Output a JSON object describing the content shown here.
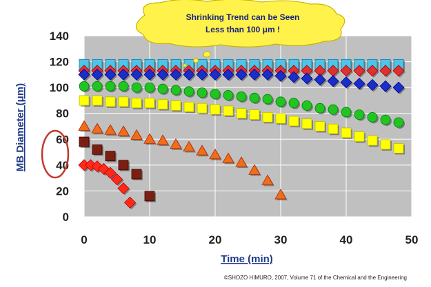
{
  "chart_data": {
    "type": "scatter",
    "title": "",
    "xlabel": "Time (min)",
    "ylabel": "MB Diameter (μm)",
    "xlim": [
      0,
      50
    ],
    "ylim": [
      0,
      140
    ],
    "x_ticks": [
      "0",
      "10",
      "20",
      "30",
      "40",
      "50"
    ],
    "y_ticks": [
      "0",
      "20",
      "40",
      "60",
      "80",
      "100",
      "120",
      "140"
    ],
    "grid": true,
    "plot_background": "#c0c0c0",
    "series": [
      {
        "marker": "square",
        "color": "#4fc3e8",
        "x": [
          0,
          2,
          4,
          6,
          8,
          10,
          12,
          14,
          16,
          18,
          20,
          22,
          24,
          26,
          28,
          30,
          32,
          34,
          36,
          38,
          40,
          42,
          44,
          46,
          48
        ],
        "y": [
          118,
          118,
          118,
          118,
          118,
          118,
          118,
          118,
          118,
          118,
          118,
          118,
          118,
          118,
          118,
          118,
          118,
          118,
          118,
          118,
          118,
          118,
          118,
          118,
          118
        ]
      },
      {
        "marker": "diamond",
        "color": "#e03030",
        "x": [
          0,
          2,
          4,
          6,
          8,
          10,
          12,
          14,
          16,
          18,
          20,
          22,
          24,
          26,
          28,
          30,
          32,
          34,
          36,
          38,
          40,
          42,
          44,
          46,
          48
        ],
        "y": [
          113,
          113,
          113,
          113,
          113,
          113,
          113,
          113,
          113,
          113,
          113,
          113,
          113,
          113,
          113,
          113,
          113,
          113,
          113,
          113,
          113,
          113,
          113,
          113,
          113
        ]
      },
      {
        "marker": "diamond",
        "color": "#1a2fc8",
        "x": [
          0,
          2,
          4,
          6,
          8,
          10,
          12,
          14,
          16,
          18,
          20,
          22,
          24,
          26,
          28,
          30,
          32,
          34,
          36,
          38,
          40,
          42,
          44,
          46,
          48
        ],
        "y": [
          110,
          110,
          110,
          110,
          110,
          110,
          110,
          110,
          110,
          110,
          110,
          110,
          110,
          110,
          110,
          109,
          108,
          107,
          106,
          105,
          104,
          103,
          102,
          101,
          100
        ]
      },
      {
        "marker": "circle",
        "color": "#22c422",
        "x": [
          0,
          2,
          4,
          6,
          8,
          10,
          12,
          14,
          16,
          18,
          20,
          22,
          24,
          26,
          28,
          30,
          32,
          34,
          36,
          38,
          40,
          42,
          44,
          46,
          48
        ],
        "y": [
          101,
          101,
          101,
          101,
          100,
          100,
          99,
          98,
          97,
          96,
          95,
          94,
          93,
          92,
          91,
          89,
          88,
          86,
          84,
          83,
          81,
          79,
          77,
          75,
          73
        ]
      },
      {
        "marker": "square",
        "color": "#ffff00",
        "x": [
          0,
          2,
          4,
          6,
          8,
          10,
          12,
          14,
          16,
          18,
          20,
          22,
          24,
          26,
          28,
          30,
          32,
          34,
          36,
          38,
          40,
          42,
          44,
          46,
          48
        ],
        "y": [
          90,
          90,
          89,
          89,
          88,
          88,
          87,
          86,
          85,
          84,
          83,
          82,
          80,
          79,
          77,
          76,
          74,
          72,
          70,
          68,
          65,
          62,
          59,
          56,
          53
        ]
      },
      {
        "marker": "triangle",
        "color": "#f26d18",
        "x": [
          0,
          2,
          4,
          6,
          8,
          10,
          12,
          14,
          16,
          18,
          20,
          22,
          24,
          26,
          28,
          30
        ],
        "y": [
          70,
          68,
          67,
          66,
          63,
          60,
          59,
          56,
          54,
          51,
          48,
          45,
          42,
          36,
          28,
          17
        ]
      },
      {
        "marker": "square",
        "color": "#7a1f12",
        "x": [
          0,
          2,
          4,
          6,
          8,
          10
        ],
        "y": [
          58,
          52,
          47,
          40,
          33,
          16
        ]
      },
      {
        "marker": "diamond",
        "color": "#ff2a1a",
        "x": [
          0,
          1,
          2,
          3,
          4,
          5,
          6,
          7
        ],
        "y": [
          40,
          40,
          39,
          37,
          34,
          29,
          22,
          11
        ]
      }
    ],
    "annotations": {
      "callout_line1": "Shrinking Trend can be Seen",
      "callout_line2": "Less than 100 μm !",
      "credit": "©SHOZO HIMURO, 2007, Volume 71 of the Chemical and the Engineering"
    }
  },
  "colors": {
    "callout_fill": "#fff24a",
    "callout_stroke": "#c8b400",
    "circle_highlight": "#c0392b",
    "axis_title": "#1f3a8a",
    "grid": "#ffffff"
  }
}
